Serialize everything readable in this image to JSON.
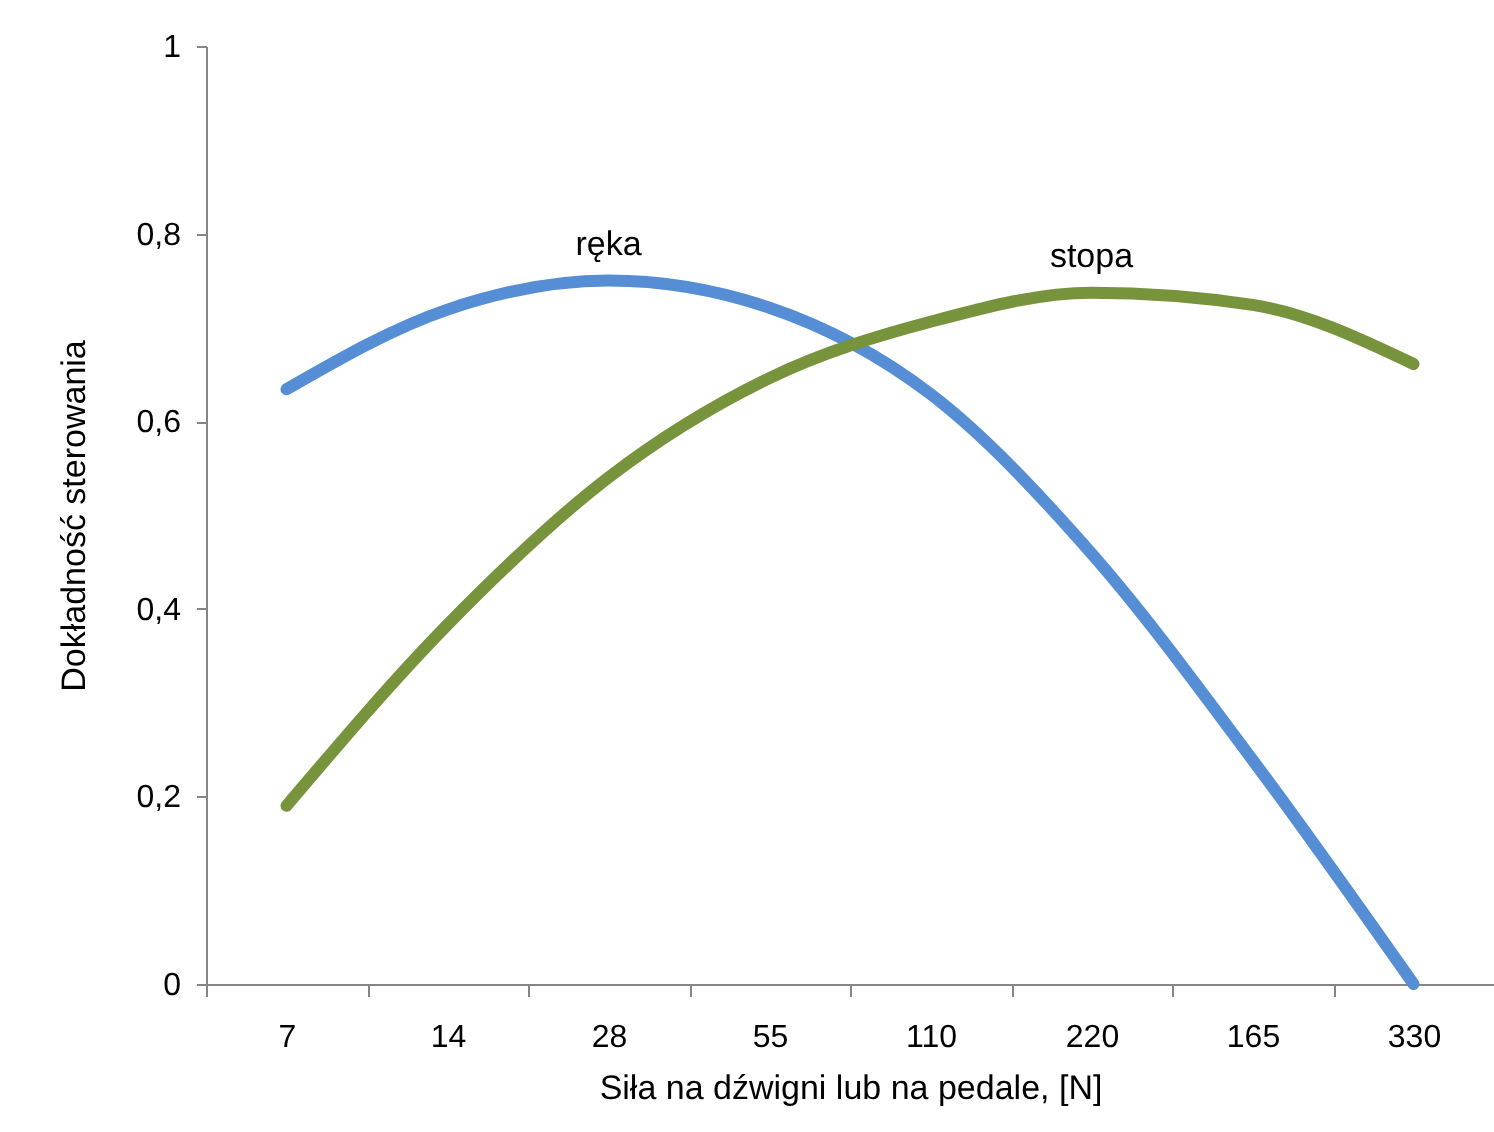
{
  "chart_data": {
    "type": "line",
    "xlabel": "Siła na dźwigni lub na pedale, [N]",
    "ylabel": "Dokładność sterowania",
    "categories": [
      "7",
      "14",
      "28",
      "55",
      "110",
      "220",
      "165",
      "330"
    ],
    "series": [
      {
        "name": "ręka",
        "color": "#558ed5",
        "values": [
          0.634,
          0.719,
          0.75,
          0.721,
          0.629,
          0.459,
          0.239,
          0
        ]
      },
      {
        "name": "stopa",
        "color": "#77933c",
        "values": [
          0.19,
          0.383,
          0.54,
          0.646,
          0.706,
          0.737,
          0.724,
          0.661
        ]
      }
    ],
    "ylim": [
      0,
      1
    ],
    "yticks": [
      0,
      {
        "value": 0.2,
        "label": "0,2"
      },
      {
        "value": 0.4,
        "label": "0,4"
      },
      {
        "value": 0.6,
        "label": "0,6"
      },
      {
        "value": 0.8,
        "label": "0,8"
      },
      1
    ],
    "grid": false,
    "legend": false,
    "marker": "none",
    "line_style": "solid"
  }
}
